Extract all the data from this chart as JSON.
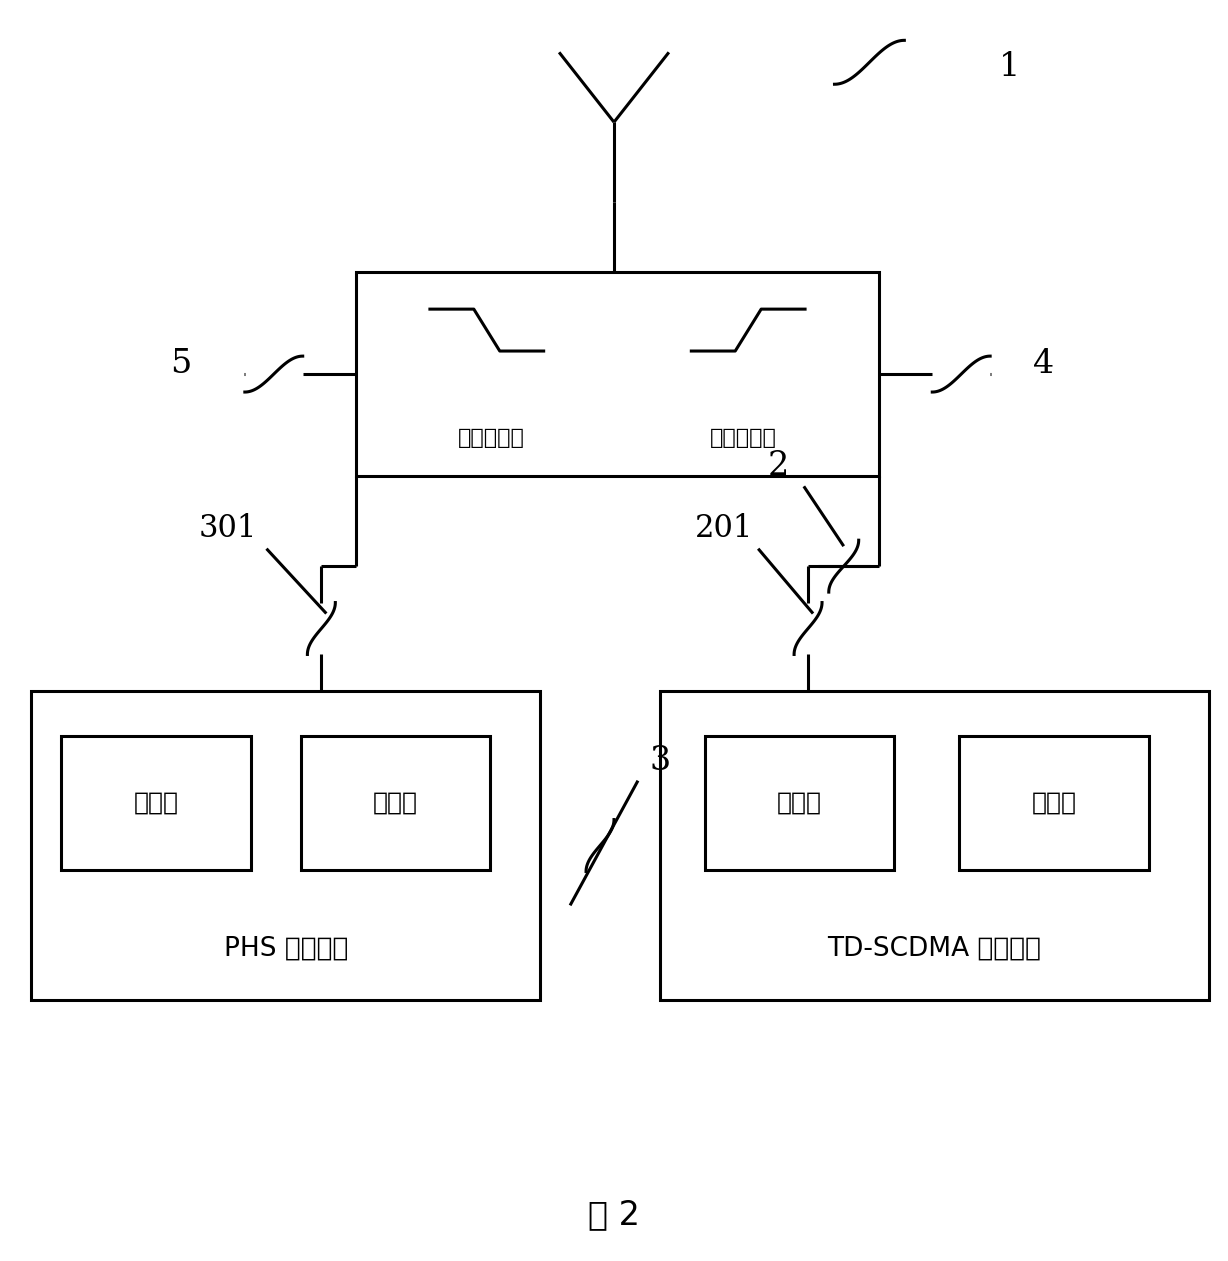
{
  "bg_color": "#ffffff",
  "fig_label": "图 2",
  "diplex_label_low": "低通滤波器",
  "diplex_label_high": "高通滤波器",
  "phs_module_label": "PHS 射频模块",
  "td_module_label": "TD-SCDMA 射频模块",
  "tx_label": "发射机",
  "rx_label": "接收机",
  "label_1": "1",
  "label_2": "2",
  "label_3": "3",
  "label_4": "4",
  "label_5": "5",
  "label_301": "301",
  "label_201": "201"
}
